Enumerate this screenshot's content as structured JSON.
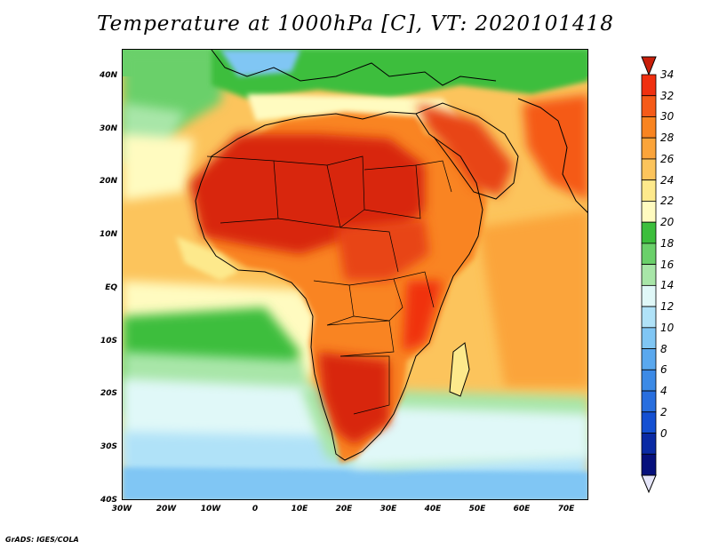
{
  "title": "Temperature at 1000hPa [C], VT: 2020101418",
  "credit": "GrADS: IGES/COLA",
  "map": {
    "lat_range": [
      -40,
      45
    ],
    "lon_range": [
      -30,
      75
    ],
    "lat_ticks": [
      {
        "value": 40,
        "label": "40N"
      },
      {
        "value": 30,
        "label": "30N"
      },
      {
        "value": 20,
        "label": "20N"
      },
      {
        "value": 10,
        "label": "10N"
      },
      {
        "value": 0,
        "label": "EQ"
      },
      {
        "value": -10,
        "label": "10S"
      },
      {
        "value": -20,
        "label": "20S"
      },
      {
        "value": -30,
        "label": "30S"
      },
      {
        "value": -40,
        "label": "40S"
      }
    ],
    "lon_ticks": [
      {
        "value": -30,
        "label": "30W"
      },
      {
        "value": -20,
        "label": "20W"
      },
      {
        "value": -10,
        "label": "10W"
      },
      {
        "value": 0,
        "label": "0"
      },
      {
        "value": 10,
        "label": "10E"
      },
      {
        "value": 20,
        "label": "20E"
      },
      {
        "value": 30,
        "label": "30E"
      },
      {
        "value": 40,
        "label": "40E"
      },
      {
        "value": 50,
        "label": "50E"
      },
      {
        "value": 60,
        "label": "60E"
      },
      {
        "value": 70,
        "label": "70E"
      }
    ]
  },
  "colorbar": {
    "labels": [
      "34",
      "32",
      "30",
      "28",
      "26",
      "24",
      "22",
      "20",
      "18",
      "16",
      "14",
      "12",
      "10",
      "8",
      "6",
      "4",
      "2",
      "0"
    ],
    "colors": [
      "#f03010",
      "#f55a18",
      "#f98420",
      "#fba43a",
      "#fcc45c",
      "#fde98c",
      "#fffbc0",
      "#3cbe3c",
      "#6ad06a",
      "#a8e6a8",
      "#e0f8f8",
      "#b0e2f8",
      "#80c6f4",
      "#5aa8ee",
      "#3c8ae6",
      "#286ede",
      "#1450d2",
      "#0a2aa4",
      "#06107c"
    ],
    "top_color": "#c81e0a",
    "bottom_color": "#e6e6fa"
  }
}
